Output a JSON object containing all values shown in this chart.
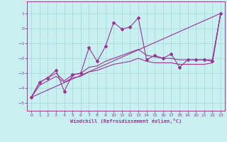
{
  "xlabel": "Windchill (Refroidissement éolien,°C)",
  "bg_color": "#c8f0f0",
  "grid_color": "#b0dede",
  "line_color": "#993399",
  "xlim": [
    -0.5,
    23.5
  ],
  "ylim": [
    -5.5,
    1.8
  ],
  "yticks": [
    1,
    0,
    -1,
    -2,
    -3,
    -4,
    -5
  ],
  "xticks": [
    0,
    1,
    2,
    3,
    4,
    5,
    6,
    7,
    8,
    9,
    10,
    11,
    12,
    13,
    14,
    15,
    16,
    17,
    18,
    19,
    20,
    21,
    22,
    23
  ],
  "series": [
    {
      "x": [
        0,
        1,
        2,
        3,
        4,
        5,
        6,
        7,
        8,
        9,
        10,
        11,
        12,
        13,
        14,
        15,
        16,
        17,
        18,
        19,
        20,
        21,
        22,
        23
      ],
      "y": [
        -4.6,
        -3.6,
        -3.3,
        -2.8,
        -4.2,
        -3.1,
        -3.0,
        -1.3,
        -2.2,
        -1.2,
        0.4,
        -0.05,
        0.1,
        0.7,
        -2.1,
        -1.8,
        -2.0,
        -1.7,
        -2.6,
        -2.1,
        -2.1,
        -2.1,
        -2.2,
        1.0
      ]
    },
    {
      "x": [
        0,
        1,
        2,
        3,
        4,
        5,
        6,
        7,
        8,
        9,
        10,
        11,
        12,
        13,
        14,
        15,
        16,
        17,
        18,
        19,
        20,
        21,
        22,
        23
      ],
      "y": [
        -4.6,
        -3.6,
        -3.3,
        -3.0,
        -3.5,
        -3.1,
        -3.0,
        -2.6,
        -2.5,
        -2.2,
        -2.0,
        -1.8,
        -1.6,
        -1.4,
        -1.8,
        -1.9,
        -2.0,
        -2.0,
        -2.1,
        -2.1,
        -2.1,
        -2.1,
        -2.1,
        1.0
      ]
    },
    {
      "x": [
        0,
        1,
        2,
        3,
        4,
        5,
        6,
        7,
        8,
        9,
        10,
        11,
        12,
        13,
        14,
        15,
        16,
        17,
        18,
        19,
        20,
        21,
        22,
        23
      ],
      "y": [
        -4.6,
        -3.8,
        -3.5,
        -3.2,
        -3.6,
        -3.3,
        -3.2,
        -2.9,
        -2.8,
        -2.6,
        -2.4,
        -2.3,
        -2.2,
        -2.0,
        -2.2,
        -2.3,
        -2.3,
        -2.3,
        -2.4,
        -2.4,
        -2.4,
        -2.4,
        -2.3,
        1.0
      ]
    },
    {
      "x": [
        0,
        23
      ],
      "y": [
        -4.6,
        1.0
      ]
    }
  ]
}
